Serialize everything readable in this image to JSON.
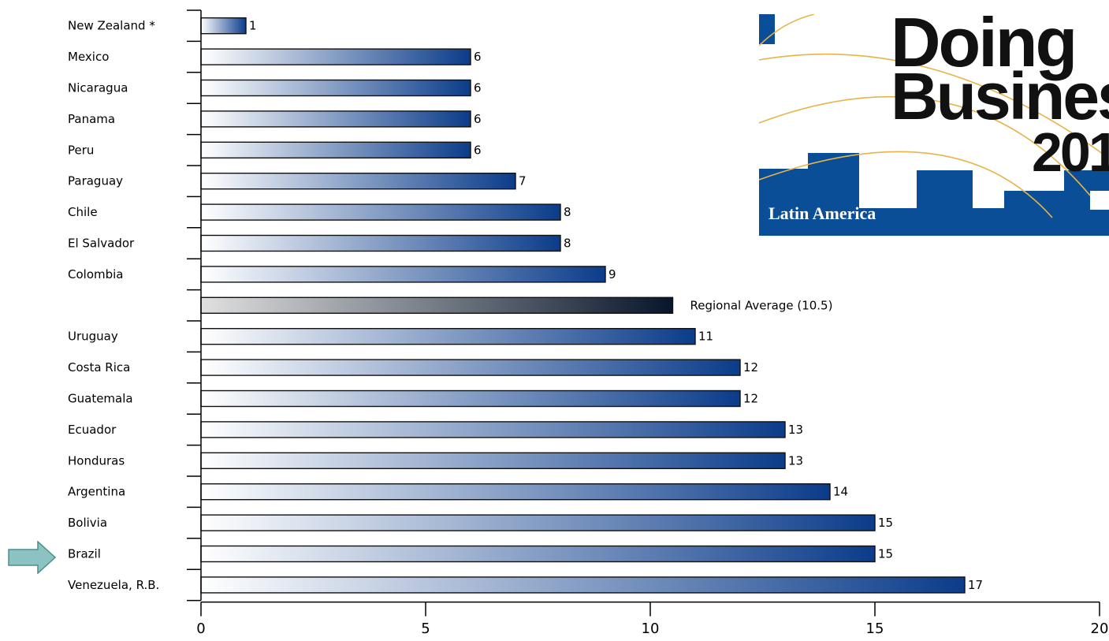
{
  "chart_data": {
    "type": "bar",
    "orientation": "horizontal",
    "categories": [
      "New Zealand *",
      "Mexico",
      "Nicaragua",
      "Panama",
      "Peru",
      "Paraguay",
      "Chile",
      "El Salvador",
      "Colombia",
      "",
      "Uruguay",
      "Costa Rica",
      "Guatemala",
      "Ecuador",
      "Honduras",
      "Argentina",
      "Bolivia",
      "Brazil",
      "Venezuela, R.B."
    ],
    "values": [
      1,
      6,
      6,
      6,
      6,
      7,
      8,
      8,
      9,
      10.5,
      11,
      12,
      12,
      13,
      13,
      14,
      15,
      15,
      17
    ],
    "value_labels": [
      "1",
      "6",
      "6",
      "6",
      "6",
      "7",
      "8",
      "8",
      "9",
      "Regional Average (10.5)",
      "11",
      "12",
      "12",
      "13",
      "13",
      "14",
      "15",
      "15",
      "17"
    ],
    "highlight": {
      "index": 9,
      "label": "Regional Average (10.5)",
      "color": "#0a1a2e"
    },
    "xlim": [
      0,
      20
    ],
    "xticks": [
      "0",
      "5",
      "10",
      "15",
      "20"
    ],
    "bar_color_start": "#ffffff",
    "bar_color_end": "#0b3c8a",
    "average_color_start": "#e0e0e0",
    "average_color_end": "#08162a",
    "grid": false,
    "marked_category": "Brazil"
  },
  "logo": {
    "words": [
      "Doing",
      "Business",
      "201"
    ],
    "region": "Latin America",
    "background_color": "#0a4e97"
  },
  "marker": {
    "icon": "right-arrow-icon",
    "color": "#8cc2c1"
  }
}
